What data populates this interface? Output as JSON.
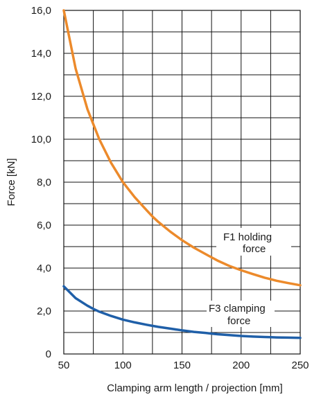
{
  "chart_data": {
    "type": "line",
    "title": "",
    "xlabel": "Clamping arm length / projection [mm]",
    "ylabel": "Force [kN]",
    "xlim": [
      50,
      250
    ],
    "ylim": [
      0,
      16
    ],
    "x_ticks": [
      {
        "value": 50,
        "label": "50"
      },
      {
        "value": 100,
        "label": "100"
      },
      {
        "value": 150,
        "label": "150"
      },
      {
        "value": 200,
        "label": "200"
      },
      {
        "value": 250,
        "label": "250"
      }
    ],
    "y_ticks": [
      {
        "value": 0,
        "label": "0"
      },
      {
        "value": 2,
        "label": "2,0"
      },
      {
        "value": 4,
        "label": "4,0"
      },
      {
        "value": 6,
        "label": "6,0"
      },
      {
        "value": 8,
        "label": "8,0"
      },
      {
        "value": 10,
        "label": "10,0"
      },
      {
        "value": 12,
        "label": "12,0"
      },
      {
        "value": 14,
        "label": "14,0"
      },
      {
        "value": 16,
        "label": "16,0"
      }
    ],
    "grid": true,
    "grid_x_step": 25,
    "grid_y_step": 1,
    "series": [
      {
        "label_lines": [
          "F1 holding",
          "force"
        ],
        "color": "#ec8a2b",
        "x": [
          50,
          60,
          70,
          75,
          80,
          90,
          100,
          110,
          120,
          125,
          130,
          140,
          150,
          160,
          170,
          175,
          180,
          190,
          200,
          210,
          220,
          225,
          230,
          240,
          250
        ],
        "y": [
          16.0,
          13.3,
          11.4,
          10.7,
          10.0,
          8.9,
          8.0,
          7.3,
          6.7,
          6.4,
          6.15,
          5.7,
          5.3,
          4.95,
          4.65,
          4.5,
          4.35,
          4.1,
          3.9,
          3.72,
          3.55,
          3.48,
          3.41,
          3.3,
          3.2
        ]
      },
      {
        "label_lines": [
          "F3 clamping",
          "force"
        ],
        "color": "#1f5fa8",
        "x": [
          50,
          60,
          70,
          75,
          80,
          90,
          100,
          110,
          120,
          125,
          130,
          140,
          150,
          160,
          170,
          175,
          180,
          190,
          200,
          210,
          220,
          225,
          230,
          240,
          250
        ],
        "y": [
          3.15,
          2.6,
          2.25,
          2.1,
          1.97,
          1.77,
          1.6,
          1.47,
          1.36,
          1.31,
          1.26,
          1.18,
          1.1,
          1.03,
          0.98,
          0.95,
          0.92,
          0.88,
          0.84,
          0.81,
          0.79,
          0.78,
          0.77,
          0.76,
          0.75
        ]
      }
    ]
  }
}
